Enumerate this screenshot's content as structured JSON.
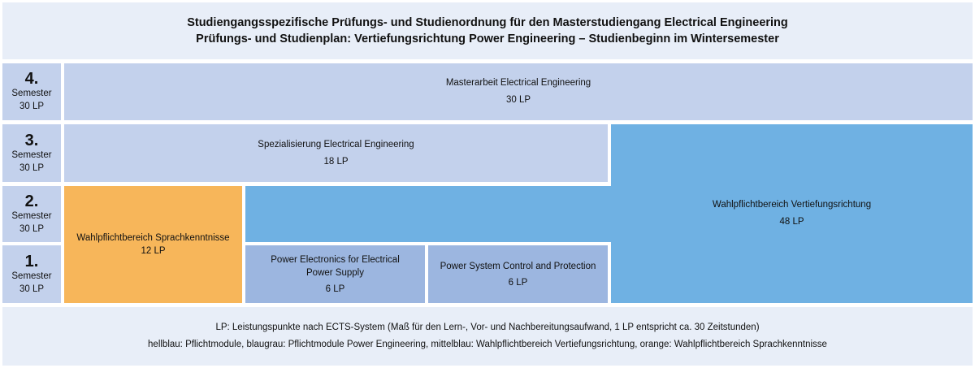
{
  "header": {
    "line1": "Studiengangsspezifische Prüfungs- und Studienordnung für den Masterstudiengang Electrical Engineering",
    "line2": "Prüfungs- und Studienplan: Vertiefungsrichtung Power Engineering – Studienbeginn im Wintersemester"
  },
  "semesters": [
    {
      "number": "4.",
      "label": "Semester",
      "lp": "30 LP"
    },
    {
      "number": "3.",
      "label": "Semester",
      "lp": "30 LP"
    },
    {
      "number": "2.",
      "label": "Semester",
      "lp": "30 LP"
    },
    {
      "number": "1.",
      "label": "Semester",
      "lp": "30 LP"
    }
  ],
  "modules": {
    "masterarbeit": {
      "title": "Masterarbeit Electrical Engineering",
      "lp": "30 LP",
      "color": "#c3d1ec"
    },
    "spezialisierung": {
      "title": "Spezialisierung Electrical Engineering",
      "lp": "18 LP",
      "color": "#c3d1ec"
    },
    "vertiefung": {
      "title": "Wahlpflichtbereich Vertiefungsrichtung",
      "lp": "48 LP",
      "color": "#6fb1e3"
    },
    "sprache": {
      "title": "Wahlpflichtbereich Sprachkenntnisse",
      "lp": "12 LP",
      "color": "#f7b65a"
    },
    "power_electronics": {
      "title_line1": "Power Electronics for Electrical",
      "title_line2": "Power Supply",
      "lp": "6 LP",
      "color": "#9cb6e0"
    },
    "power_system": {
      "title": "Power System Control and Protection",
      "lp": "6 LP",
      "color": "#9cb6e0"
    }
  },
  "footer": {
    "line1": "LP: Leistungspunkte nach ECTS-System (Maß für den Lern-, Vor- und Nachbereitungsaufwand, 1 LP entspricht ca. 30 Zeitstunden)",
    "line2": "hellblau: Pflichtmodule, blaugrau: Pflichtmodule Power Engineering, mittelblau: Wahlpflichtbereich Vertiefungsrichtung, orange: Wahlpflichtbereich Sprachkenntnisse"
  }
}
